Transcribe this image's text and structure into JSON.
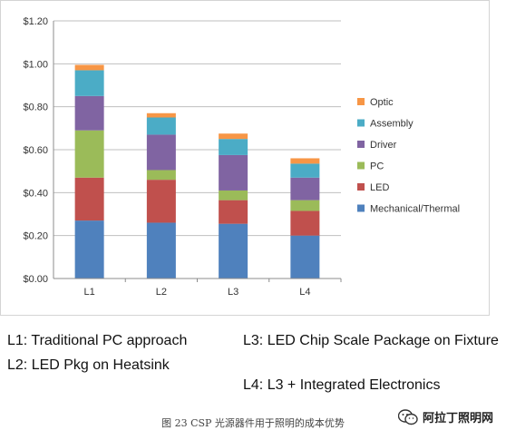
{
  "chart_data": {
    "type": "bar",
    "stacked": true,
    "categories": [
      "L1",
      "L2",
      "L3",
      "L4"
    ],
    "y_ticks": [
      "$0.00",
      "$0.20",
      "$0.40",
      "$0.60",
      "$0.80",
      "$1.00",
      "$1.20"
    ],
    "ylim": [
      0,
      1.2
    ],
    "grid": true,
    "legend_placement": "right",
    "series": [
      {
        "name": "Mechanical/Thermal",
        "color": "#4f81bd",
        "values": [
          0.27,
          0.26,
          0.255,
          0.2
        ]
      },
      {
        "name": "LED",
        "color": "#c0504d",
        "values": [
          0.2,
          0.2,
          0.11,
          0.115
        ]
      },
      {
        "name": "PC",
        "color": "#9bbb59",
        "values": [
          0.22,
          0.045,
          0.045,
          0.05
        ]
      },
      {
        "name": "Driver",
        "color": "#8064a2",
        "values": [
          0.16,
          0.165,
          0.165,
          0.105
        ]
      },
      {
        "name": "Assembly",
        "color": "#4bacc6",
        "values": [
          0.12,
          0.08,
          0.075,
          0.065
        ]
      },
      {
        "name": "Optic",
        "color": "#f79646",
        "values": [
          0.025,
          0.02,
          0.025,
          0.025
        ]
      }
    ]
  },
  "notes": {
    "l1": "L1: Traditional PC approach",
    "l2": "L2: LED Pkg on Heatsink",
    "l3": "L3: LED Chip Scale Package on Fixture",
    "l4": "L4: L3 + Integrated Electronics"
  },
  "caption": "图 23   CSP 光源器件用于照明的成本优势",
  "watermark": {
    "text": "阿拉丁照明网",
    "icon": "wechat-icon"
  }
}
